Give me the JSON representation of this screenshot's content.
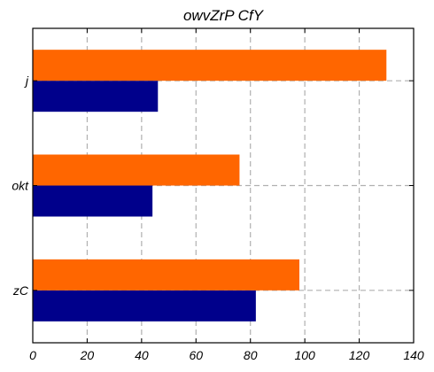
{
  "chart_data": {
    "type": "bar",
    "orientation": "horizontal",
    "title": "owvZrP CfY",
    "xlabel": "",
    "ylabel": "",
    "categories": [
      "zC",
      "okt",
      "j"
    ],
    "series": [
      {
        "values": [
          82,
          44,
          46
        ],
        "color": "#00008b"
      },
      {
        "values": [
          98,
          76,
          130
        ],
        "color": "#ff6600"
      }
    ],
    "xlim": [
      0,
      140
    ],
    "xticks": [
      0,
      20,
      40,
      60,
      80,
      100,
      120,
      140
    ],
    "grid": true,
    "grid_style": "dashed",
    "legend": "none"
  }
}
